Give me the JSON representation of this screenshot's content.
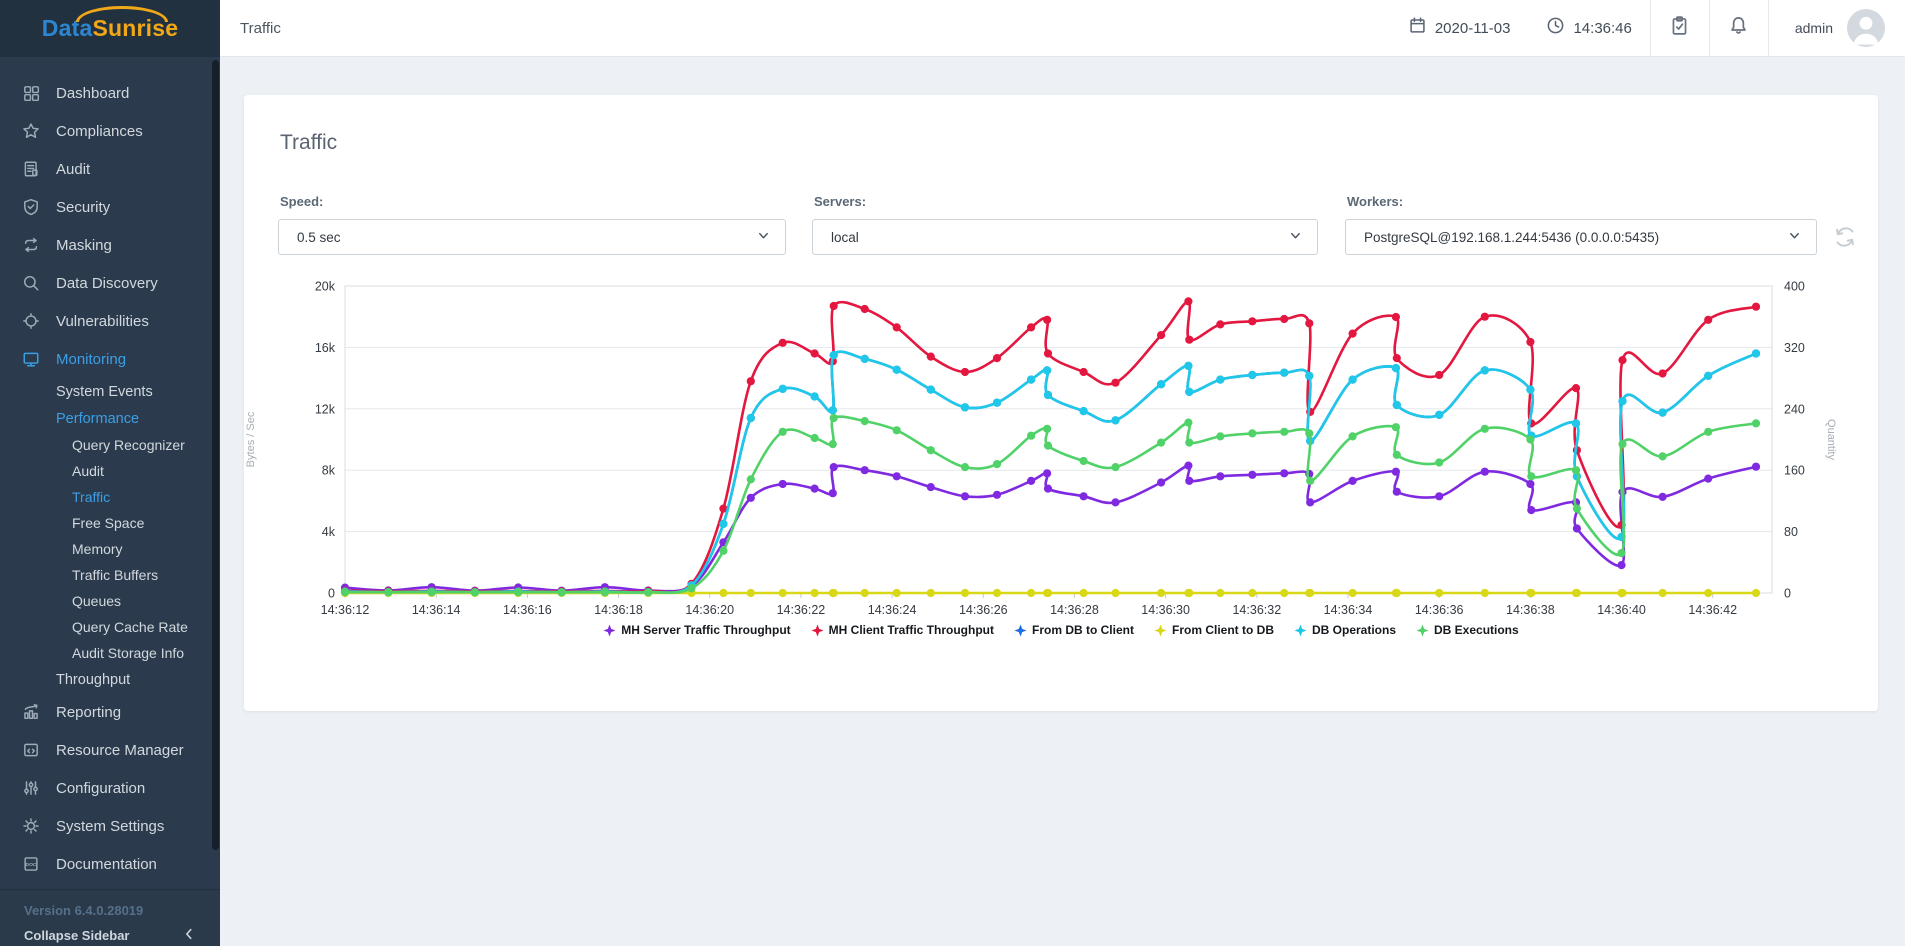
{
  "app": {
    "logo_part1": "Data",
    "logo_part2": "Sunrise"
  },
  "topbar": {
    "title": "Traffic",
    "date": "2020-11-03",
    "time": "14:36:46",
    "user": "admin"
  },
  "sidebar": {
    "items": [
      {
        "label": "Dashboard",
        "icon": "grid-icon",
        "level": 0,
        "active": false
      },
      {
        "label": "Compliances",
        "icon": "star-icon",
        "level": 0,
        "active": false
      },
      {
        "label": "Audit",
        "icon": "audit-doc-icon",
        "level": 0,
        "active": false
      },
      {
        "label": "Security",
        "icon": "shield-icon",
        "level": 0,
        "active": false
      },
      {
        "label": "Masking",
        "icon": "masking-arrows-icon",
        "level": 0,
        "active": false
      },
      {
        "label": "Data Discovery",
        "icon": "magnifier-icon",
        "level": 0,
        "active": false
      },
      {
        "label": "Vulnerabilities",
        "icon": "target-icon",
        "level": 0,
        "active": false
      },
      {
        "label": "Monitoring",
        "icon": "monitor-icon",
        "level": 0,
        "active": true
      },
      {
        "label": "System Events",
        "icon": "",
        "level": 1,
        "active": false
      },
      {
        "label": "Performance",
        "icon": "",
        "level": 1,
        "active": true
      },
      {
        "label": "Query Recognizer",
        "icon": "",
        "level": 2,
        "active": false
      },
      {
        "label": "Audit",
        "icon": "",
        "level": 2,
        "active": false
      },
      {
        "label": "Traffic",
        "icon": "",
        "level": 2,
        "active": true
      },
      {
        "label": "Free Space",
        "icon": "",
        "level": 2,
        "active": false
      },
      {
        "label": "Memory",
        "icon": "",
        "level": 2,
        "active": false
      },
      {
        "label": "Traffic Buffers",
        "icon": "",
        "level": 2,
        "active": false
      },
      {
        "label": "Queues",
        "icon": "",
        "level": 2,
        "active": false
      },
      {
        "label": "Query Cache Rate",
        "icon": "",
        "level": 2,
        "active": false
      },
      {
        "label": "Audit Storage Info",
        "icon": "",
        "level": 2,
        "active": false
      },
      {
        "label": "Throughput",
        "icon": "",
        "level": 1,
        "active": false
      },
      {
        "label": "Reporting",
        "icon": "bar-chart-icon",
        "level": 0,
        "active": false
      },
      {
        "label": "Resource Manager",
        "icon": "code-window-icon",
        "level": 0,
        "active": false
      },
      {
        "label": "Configuration",
        "icon": "sliders-icon",
        "level": 0,
        "active": false
      },
      {
        "label": "System Settings",
        "icon": "gear-icon",
        "level": 0,
        "active": false
      },
      {
        "label": "Documentation",
        "icon": "doc-icon",
        "level": 0,
        "active": false
      }
    ],
    "version": "Version 6.4.0.28019",
    "collapse_label": "Collapse Sidebar"
  },
  "panel": {
    "title": "Traffic",
    "controls": [
      {
        "label": "Speed:",
        "value": "0.5 sec"
      },
      {
        "label": "Servers:",
        "value": "local"
      },
      {
        "label": "Workers:",
        "value": "PostgreSQL@192.168.1.244:5436 (0.0.0.0:5435)"
      }
    ]
  },
  "chart_data": {
    "type": "line",
    "x_axis": {
      "tick_labels": [
        "14:36:12",
        "14:36:14",
        "14:36:16",
        "14:36:18",
        "14:36:20",
        "14:36:22",
        "14:36:24",
        "14:36:26",
        "14:36:28",
        "14:36:30",
        "14:36:32",
        "14:36:34",
        "14:36:36",
        "14:36:38",
        "14:36:40",
        "14:36:42"
      ],
      "tick_seconds": [
        12,
        14,
        16,
        18,
        20,
        22,
        24,
        26,
        28,
        30,
        32,
        34,
        36,
        38,
        40,
        42
      ],
      "range_seconds": [
        12,
        43.3
      ]
    },
    "left_axis": {
      "title": "Bytes / Sec",
      "tick_labels": [
        "0",
        "4k",
        "8k",
        "12k",
        "16k",
        "20k"
      ],
      "min": 0,
      "max": 20000
    },
    "right_axis": {
      "title": "Quantity",
      "tick_labels": [
        "0",
        "80",
        "160",
        "240",
        "320",
        "400"
      ],
      "min": 0,
      "max": 400
    },
    "grid": "horizontal",
    "legend_position": "bottom",
    "times_seconds": [
      12,
      12.95,
      13.9,
      14.85,
      15.8,
      16.75,
      17.7,
      18.65,
      19.6,
      20.3,
      20.9,
      21.6,
      22.3,
      22.7,
      22.72,
      23.4,
      24.1,
      24.85,
      25.6,
      26.3,
      27.05,
      27.4,
      27.42,
      28.2,
      28.9,
      29.9,
      30.5,
      30.52,
      31.2,
      31.9,
      32.6,
      33.15,
      33.17,
      34.1,
      35.05,
      35.07,
      36.0,
      37.0,
      38.0,
      38.02,
      39.0,
      39.02,
      40.0,
      40.02,
      40.9,
      41.9,
      42.95
    ],
    "series": [
      {
        "name": "MH Server Traffic Throughput",
        "color": "#7f2ae0",
        "axis": "left",
        "values": [
          350,
          160,
          380,
          150,
          360,
          150,
          380,
          160,
          450,
          3300,
          6200,
          7100,
          6800,
          6500,
          8200,
          8000,
          7600,
          6900,
          6300,
          6400,
          7300,
          7800,
          6800,
          6300,
          5900,
          7200,
          8300,
          7300,
          7600,
          7700,
          7800,
          7750,
          5900,
          7300,
          7900,
          6600,
          6300,
          7900,
          7100,
          5400,
          5900,
          4200,
          1820,
          6580,
          6260,
          7450,
          8230
        ]
      },
      {
        "name": "MH Client Traffic Throughput",
        "color": "#e3173f",
        "axis": "left",
        "values": [
          150,
          110,
          140,
          110,
          130,
          110,
          140,
          120,
          600,
          5500,
          13800,
          16300,
          15600,
          15100,
          18700,
          18500,
          17300,
          15400,
          14400,
          15300,
          17300,
          17800,
          15600,
          14400,
          13700,
          16800,
          19000,
          16500,
          17500,
          17700,
          17850,
          17570,
          11800,
          16900,
          17980,
          15300,
          14200,
          18000,
          16350,
          11050,
          13350,
          9300,
          4430,
          15170,
          14300,
          17800,
          18650
        ]
      },
      {
        "name": "From DB to Client",
        "color": "#1b6fe0",
        "axis": "left",
        "values": [
          100,
          50,
          100,
          50,
          100,
          50,
          100,
          50,
          500,
          4500,
          11400,
          13300,
          12800,
          11900,
          15500,
          15250,
          14550,
          13250,
          12100,
          12400,
          13900,
          14500,
          12900,
          11850,
          11250,
          13600,
          14800,
          13100,
          13900,
          14200,
          14350,
          14150,
          9900,
          13900,
          14650,
          12250,
          11600,
          14500,
          13250,
          10250,
          11050,
          7600,
          3650,
          12500,
          11750,
          14150,
          15600
        ]
      },
      {
        "name": "From Client to DB",
        "color": "#d8d816",
        "axis": "left",
        "values": [
          0,
          0,
          0,
          0,
          0,
          0,
          0,
          0,
          0,
          0,
          0,
          0,
          0,
          0,
          0,
          0,
          0,
          0,
          0,
          0,
          0,
          0,
          0,
          0,
          0,
          0,
          0,
          0,
          0,
          0,
          0,
          0,
          0,
          0,
          0,
          0,
          0,
          0,
          0,
          0,
          0,
          0,
          0,
          0,
          0,
          0,
          0
        ]
      },
      {
        "name": "DB Operations",
        "color": "#1fc8e8",
        "axis": "right",
        "values": [
          2,
          1,
          2,
          1,
          2,
          1,
          2,
          1,
          10,
          90,
          228,
          266,
          256,
          238,
          310,
          305,
          291,
          265,
          242,
          248,
          278,
          290,
          258,
          237,
          225,
          272,
          296,
          262,
          278,
          284,
          287,
          283,
          198,
          278,
          293,
          245,
          232,
          290,
          265,
          205,
          221,
          152,
          73,
          250,
          235,
          283,
          312
        ]
      },
      {
        "name": "DB Executions",
        "color": "#50d268",
        "axis": "right",
        "values": [
          1,
          1,
          1,
          1,
          1,
          1,
          1,
          1,
          6,
          55,
          148,
          210,
          202,
          194,
          228,
          224,
          212,
          186,
          164,
          168,
          205,
          214,
          192,
          172,
          164,
          196,
          222,
          196,
          204,
          208,
          210,
          208,
          146,
          204,
          216,
          180,
          170,
          214,
          200,
          152,
          160,
          110,
          52,
          194,
          178,
          210,
          221
        ]
      }
    ]
  }
}
